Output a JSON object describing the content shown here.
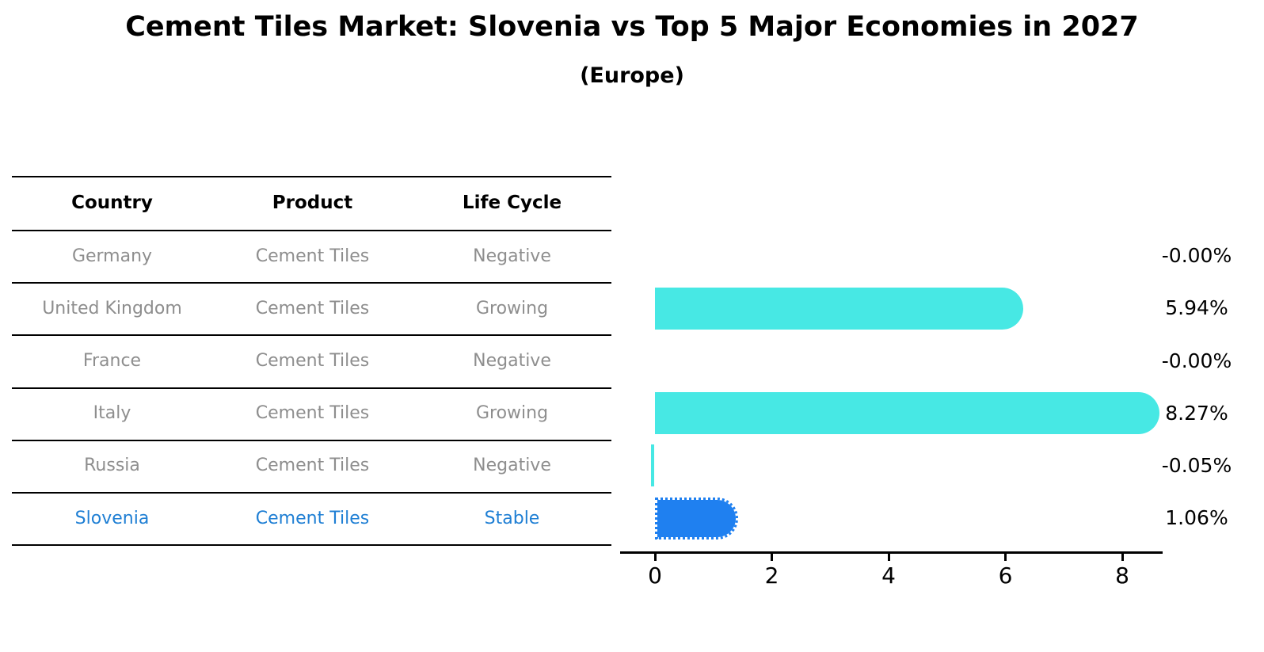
{
  "colors": {
    "bar": "#47e8e4",
    "highlight_bar": "#1f80f0",
    "highlight_text": "#1f7fd4",
    "row_text": "#8e8e8e",
    "line": "#000000"
  },
  "chart_data": {
    "type": "bar",
    "orientation": "horizontal",
    "title": "Cement Tiles Market: Slovenia vs Top 5 Major Economies in 2027",
    "subtitle": "(Europe)",
    "categories": [
      "Germany",
      "United Kingdom",
      "France",
      "Italy",
      "Russia",
      "Slovenia"
    ],
    "values": [
      -0.0,
      5.94,
      -0.0,
      8.27,
      -0.05,
      1.06
    ],
    "value_labels": [
      "-0.00%",
      "5.94%",
      "-0.00%",
      "8.27%",
      "-0.05%",
      "1.06%"
    ],
    "unit": "%",
    "table_columns": [
      "Country",
      "Product",
      "Life Cycle"
    ],
    "table_rows": [
      [
        "Germany",
        "Cement Tiles",
        "Negative"
      ],
      [
        "United Kingdom",
        "Cement Tiles",
        "Growing"
      ],
      [
        "France",
        "Cement Tiles",
        "Negative"
      ],
      [
        "Italy",
        "Cement Tiles",
        "Growing"
      ],
      [
        "Russia",
        "Cement Tiles",
        "Negative"
      ],
      [
        "Slovenia",
        "Cement Tiles",
        "Stable"
      ]
    ],
    "highlight_category": "Slovenia",
    "highlight_index": 5,
    "xticks": [
      0,
      2,
      4,
      6,
      8
    ],
    "xtick_labels": [
      "0",
      "2",
      "4",
      "6",
      "8"
    ],
    "xlim": [
      -0.6,
      8.7
    ],
    "grid": false,
    "legend": false
  }
}
